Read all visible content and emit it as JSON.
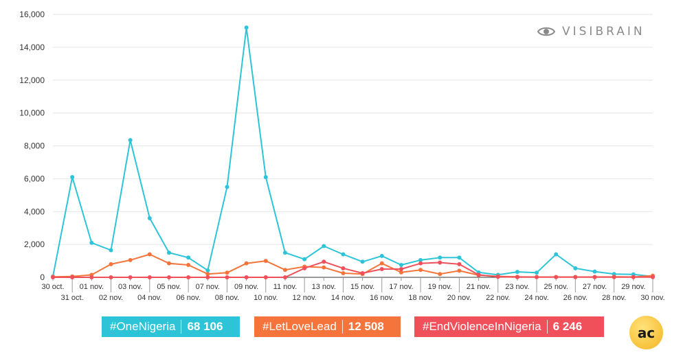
{
  "brand": {
    "name": "VISIBRAIN",
    "icon": "eye-icon",
    "color": "#8a8a8a"
  },
  "badge": {
    "text": "ac",
    "icon": "ac-logo-icon"
  },
  "legend": [
    {
      "tag": "#OneNigeria",
      "total": "68 106",
      "color": "#2ec4d8"
    },
    {
      "tag": "#LetLoveLead",
      "total": "12 508",
      "color": "#f4743b"
    },
    {
      "tag": "#EndViolenceInNigeria",
      "total": "6 246",
      "color": "#f0505a"
    }
  ],
  "chart_data": {
    "type": "line",
    "ylim": [
      0,
      16000
    ],
    "yticks": [
      "0",
      "2,000",
      "4,000",
      "6,000",
      "8,000",
      "10,000",
      "12,000",
      "14,000",
      "16,000"
    ],
    "ytick_values": [
      0,
      2000,
      4000,
      6000,
      8000,
      10000,
      12000,
      14000,
      16000
    ],
    "grid": true,
    "legend_position": "bottom",
    "categories": [
      "30 oct.",
      "31 oct.",
      "01 nov.",
      "02 nov.",
      "03 nov.",
      "04 nov.",
      "05 nov.",
      "06 nov.",
      "07 nov.",
      "08 nov.",
      "09 nov.",
      "10 nov.",
      "11 nov.",
      "12 nov.",
      "13 nov.",
      "14 nov.",
      "15 nov.",
      "16 nov.",
      "17 nov.",
      "18 nov.",
      "19 nov.",
      "20 nov.",
      "21 nov.",
      "22 nov.",
      "23 nov.",
      "24 nov.",
      "25 nov.",
      "26 nov.",
      "27 nov.",
      "28 nov.",
      "29 nov.",
      "30 nov."
    ],
    "series": [
      {
        "name": "#OneNigeria",
        "color": "#2ec4d8",
        "values": [
          50,
          6100,
          2100,
          1650,
          8350,
          3600,
          1500,
          1200,
          420,
          5500,
          15200,
          6100,
          1500,
          1100,
          1900,
          1400,
          950,
          1300,
          750,
          1050,
          1200,
          1200,
          300,
          150,
          330,
          280,
          1400,
          550,
          350,
          200,
          180,
          50
        ]
      },
      {
        "name": "#LetLoveLead",
        "color": "#f4743b",
        "values": [
          30,
          50,
          150,
          800,
          1050,
          1400,
          850,
          750,
          200,
          280,
          850,
          1000,
          450,
          650,
          600,
          250,
          200,
          850,
          300,
          450,
          200,
          400,
          130,
          60,
          30,
          20,
          20,
          20,
          20,
          30,
          20,
          100
        ]
      },
      {
        "name": "#EndViolenceInNigeria",
        "color": "#f0505a",
        "values": [
          0,
          0,
          0,
          0,
          0,
          0,
          0,
          0,
          0,
          0,
          0,
          0,
          0,
          550,
          950,
          550,
          250,
          500,
          500,
          850,
          900,
          800,
          150,
          30,
          10,
          10,
          10,
          10,
          10,
          10,
          10,
          10
        ]
      }
    ]
  }
}
